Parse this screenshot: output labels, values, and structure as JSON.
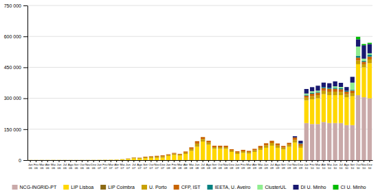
{
  "chart_data": {
    "type": "bar",
    "stacked": true,
    "grid": true,
    "legend": "bottom",
    "ylim": [
      0,
      750000
    ],
    "yticks": [
      0,
      {
        "value": 150000,
        "label": "150 000"
      },
      {
        "value": 300000,
        "label": "300 000"
      },
      {
        "value": 450000,
        "label": "450 000"
      },
      {
        "value": 600000,
        "label": "600 000"
      },
      {
        "value": 750000,
        "label": "750 000"
      }
    ],
    "categories": [
      "Jan\n06",
      "Fev\n06",
      "Mar\n06",
      "Abr\n06",
      "Mai\n06",
      "Jun\n06",
      "Jul\n06",
      "Ago\n06",
      "Set\n06",
      "Out\n06",
      "Nov\n06",
      "Dez\n06",
      "Jan\n07",
      "Fev\n07",
      "Mar\n07",
      "Abr\n07",
      "Mai\n07",
      "Jun\n07",
      "Jul\n07",
      "Ago\n07",
      "Set\n07",
      "Out\n07",
      "Nov\n07",
      "Dez\n07",
      "Jan\n08",
      "Fev\n08",
      "Mar\n08",
      "Abr\n08",
      "Mai\n08",
      "Jun\n08",
      "Jul\n08",
      "Ago\n08",
      "Set\n08",
      "Out\n08",
      "Nov\n08",
      "Dez\n08",
      "Jan\n09",
      "Fev\n09",
      "Mar\n09",
      "Abr\n09",
      "Mai\n09",
      "Jun\n09",
      "Jul\n09",
      "Ago\n09",
      "Set\n09",
      "Out\n09",
      "Nov\n09",
      "Dez\n09",
      "Jan\n10",
      "Fev\n10",
      "Mar\n10",
      "Abr\n10",
      "Mai\n10",
      "Jun\n10",
      "Jul\n10",
      "Ago\n10",
      "Set\n10",
      "Out\n10",
      "Nov\n10",
      "Dez\n10"
    ],
    "series": [
      {
        "name": "NCG-INGRID-PT",
        "color": "#c9a9a9",
        "values": [
          0,
          0,
          0,
          0,
          0,
          0,
          0,
          0,
          0,
          0,
          0,
          0,
          0,
          0,
          0,
          0,
          0,
          0,
          0,
          0,
          0,
          0,
          0,
          0,
          0,
          0,
          0,
          0,
          0,
          0,
          0,
          0,
          0,
          0,
          0,
          0,
          0,
          0,
          0,
          0,
          0,
          0,
          0,
          0,
          0,
          0,
          0,
          0,
          180000,
          175000,
          175000,
          185000,
          180000,
          180000,
          180000,
          170000,
          170000,
          315000,
          305000,
          300000
        ]
      },
      {
        "name": "LIP Lisboa",
        "color": "#ffd700",
        "values": [
          500,
          500,
          600,
          700,
          800,
          700,
          600,
          500,
          500,
          600,
          700,
          800,
          1000,
          1200,
          1500,
          2000,
          3000,
          5000,
          8000,
          7000,
          9000,
          10000,
          11000,
          12000,
          20000,
          25000,
          22000,
          30000,
          45000,
          65000,
          90000,
          75000,
          55000,
          55000,
          55000,
          40000,
          30000,
          35000,
          32000,
          40000,
          50000,
          60000,
          70000,
          60000,
          52000,
          65000,
          85000,
          60000,
          110000,
          120000,
          125000,
          135000,
          135000,
          135000,
          135000,
          135000,
          140000,
          150000,
          145000,
          170000
        ]
      },
      {
        "name": "LIP Coimbra",
        "color": "#8b6914",
        "values": [
          0,
          0,
          0,
          0,
          0,
          0,
          0,
          0,
          0,
          0,
          0,
          0,
          0,
          0,
          0,
          0,
          0,
          0,
          0,
          0,
          0,
          0,
          0,
          0,
          0,
          0,
          0,
          0,
          0,
          0,
          0,
          0,
          0,
          0,
          0,
          0,
          0,
          0,
          0,
          0,
          0,
          0,
          0,
          0,
          0,
          0,
          0,
          0,
          0,
          0,
          0,
          0,
          0,
          0,
          0,
          0,
          0,
          0,
          0,
          0
        ]
      },
      {
        "name": "U. Porto",
        "color": "#c8a000",
        "values": [
          200,
          200,
          200,
          200,
          200,
          200,
          200,
          200,
          200,
          200,
          200,
          200,
          300,
          400,
          500,
          800,
          1500,
          2500,
          4000,
          3500,
          5000,
          5500,
          6000,
          7000,
          5000,
          6000,
          5000,
          7000,
          9000,
          15000,
          12000,
          10000,
          8000,
          8000,
          8000,
          7000,
          7000,
          8000,
          7000,
          8000,
          10000,
          12000,
          13000,
          11000,
          9000,
          10000,
          13000,
          10000,
          13000,
          15000,
          15000,
          16000,
          17000,
          17000,
          16000,
          15000,
          15000,
          18000,
          15000,
          18000
        ]
      },
      {
        "name": "CFP, IST",
        "color": "#c86400",
        "values": [
          0,
          0,
          0,
          0,
          0,
          0,
          0,
          0,
          0,
          0,
          0,
          0,
          0,
          0,
          0,
          0,
          0,
          800,
          1500,
          1500,
          3000,
          3500,
          4000,
          4500,
          3500,
          4000,
          3500,
          5000,
          8000,
          12000,
          10000,
          9000,
          7000,
          7000,
          7000,
          6000,
          6000,
          7000,
          6000,
          7000,
          9000,
          10000,
          11000,
          10000,
          8000,
          9000,
          12000,
          9000,
          10000,
          12000,
          12000,
          13000,
          14000,
          14000,
          13000,
          12000,
          12000,
          14000,
          12000,
          14000
        ]
      },
      {
        "name": "IEETA, U. Aveiro",
        "color": "#008080",
        "values": [
          0,
          0,
          0,
          0,
          0,
          0,
          0,
          0,
          0,
          0,
          0,
          0,
          0,
          0,
          0,
          0,
          0,
          0,
          0,
          0,
          0,
          0,
          0,
          0,
          0,
          0,
          0,
          0,
          0,
          0,
          0,
          0,
          0,
          0,
          0,
          0,
          0,
          0,
          0,
          0,
          0,
          0,
          0,
          0,
          0,
          0,
          0,
          3000,
          4000,
          5000,
          4000,
          5000,
          5000,
          5000,
          5000,
          4500,
          4000,
          9000,
          5000,
          9000
        ]
      },
      {
        "name": "ClusterUL",
        "color": "#90ee90",
        "values": [
          0,
          0,
          0,
          0,
          0,
          0,
          0,
          0,
          0,
          0,
          0,
          0,
          0,
          0,
          0,
          0,
          0,
          0,
          0,
          0,
          0,
          0,
          0,
          0,
          0,
          0,
          0,
          0,
          0,
          0,
          0,
          0,
          0,
          0,
          0,
          0,
          0,
          0,
          0,
          0,
          0,
          0,
          0,
          0,
          0,
          0,
          0,
          0,
          6000,
          7000,
          6000,
          0,
          0,
          7000,
          6000,
          0,
          35000,
          45000,
          10000,
          7000
        ]
      },
      {
        "name": "DI U. Minho",
        "color": "#191970",
        "values": [
          0,
          0,
          0,
          0,
          0,
          0,
          0,
          0,
          0,
          0,
          0,
          0,
          0,
          0,
          0,
          0,
          0,
          0,
          0,
          0,
          0,
          0,
          0,
          0,
          0,
          0,
          0,
          0,
          0,
          0,
          0,
          0,
          0,
          0,
          0,
          0,
          0,
          0,
          0,
          0,
          0,
          0,
          0,
          0,
          0,
          0,
          6000,
          12000,
          22000,
          20000,
          24000,
          22000,
          22000,
          24000,
          20000,
          18000,
          28000,
          35000,
          65000,
          45000
        ]
      },
      {
        "name": "CI U. Minho",
        "color": "#00bb00",
        "values": [
          0,
          0,
          0,
          0,
          0,
          0,
          0,
          0,
          0,
          0,
          0,
          0,
          0,
          0,
          0,
          0,
          0,
          0,
          0,
          0,
          0,
          0,
          0,
          0,
          0,
          0,
          0,
          0,
          0,
          0,
          0,
          0,
          0,
          0,
          0,
          0,
          0,
          0,
          0,
          0,
          0,
          0,
          0,
          0,
          0,
          0,
          0,
          0,
          0,
          0,
          0,
          0,
          0,
          0,
          0,
          0,
          0,
          12000,
          6000,
          6000
        ]
      }
    ]
  }
}
